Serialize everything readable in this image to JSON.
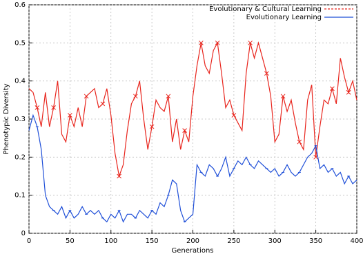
{
  "chart_data": {
    "type": "line",
    "x_label": "Generations",
    "y_label": "Phenotypic Diversity",
    "x": [
      0,
      5,
      10,
      15,
      20,
      25,
      30,
      35,
      40,
      45,
      50,
      55,
      60,
      65,
      70,
      75,
      80,
      85,
      90,
      95,
      100,
      105,
      110,
      115,
      120,
      125,
      130,
      135,
      140,
      145,
      150,
      155,
      160,
      165,
      170,
      175,
      180,
      185,
      190,
      195,
      200,
      205,
      210,
      215,
      220,
      225,
      230,
      235,
      240,
      245,
      250,
      255,
      260,
      265,
      270,
      275,
      280,
      285,
      290,
      295,
      300,
      305,
      310,
      315,
      320,
      325,
      330,
      335,
      340,
      345,
      350,
      355,
      360,
      365,
      370,
      375,
      380,
      385,
      390,
      395,
      400
    ],
    "series": [
      {
        "name": "Evolutionary & Cultural Learning",
        "color": "#e8241c",
        "marker": "x",
        "values": [
          0.38,
          0.37,
          0.33,
          0.28,
          0.37,
          0.28,
          0.33,
          0.4,
          0.26,
          0.24,
          0.31,
          0.28,
          0.33,
          0.28,
          0.36,
          0.37,
          0.38,
          0.33,
          0.34,
          0.38,
          0.31,
          0.21,
          0.15,
          0.18,
          0.27,
          0.34,
          0.36,
          0.4,
          0.3,
          0.22,
          0.28,
          0.35,
          0.33,
          0.32,
          0.36,
          0.24,
          0.3,
          0.22,
          0.27,
          0.24,
          0.36,
          0.44,
          0.5,
          0.44,
          0.42,
          0.48,
          0.5,
          0.42,
          0.33,
          0.35,
          0.31,
          0.29,
          0.27,
          0.42,
          0.5,
          0.46,
          0.5,
          0.46,
          0.42,
          0.36,
          0.24,
          0.26,
          0.36,
          0.32,
          0.35,
          0.29,
          0.24,
          0.22,
          0.35,
          0.39,
          0.2,
          0.28,
          0.35,
          0.34,
          0.38,
          0.34,
          0.46,
          0.41,
          0.37,
          0.4,
          0.35
        ]
      },
      {
        "name": "Evolutionary Learning",
        "color": "#1f4fd8",
        "marker": "tick",
        "values": [
          0.27,
          0.31,
          0.28,
          0.22,
          0.1,
          0.07,
          0.06,
          0.05,
          0.07,
          0.04,
          0.06,
          0.04,
          0.05,
          0.07,
          0.05,
          0.06,
          0.05,
          0.06,
          0.04,
          0.03,
          0.05,
          0.04,
          0.06,
          0.03,
          0.05,
          0.05,
          0.04,
          0.06,
          0.05,
          0.04,
          0.06,
          0.05,
          0.08,
          0.07,
          0.1,
          0.14,
          0.13,
          0.06,
          0.03,
          0.04,
          0.05,
          0.18,
          0.16,
          0.15,
          0.18,
          0.17,
          0.15,
          0.17,
          0.2,
          0.15,
          0.17,
          0.19,
          0.18,
          0.2,
          0.18,
          0.17,
          0.19,
          0.18,
          0.17,
          0.16,
          0.17,
          0.15,
          0.16,
          0.18,
          0.16,
          0.15,
          0.16,
          0.18,
          0.2,
          0.21,
          0.23,
          0.17,
          0.18,
          0.16,
          0.17,
          0.15,
          0.16,
          0.13,
          0.15,
          0.13,
          0.14
        ]
      }
    ],
    "xlim": [
      0,
      400
    ],
    "xticks": [
      0,
      50,
      100,
      150,
      200,
      250,
      300,
      350,
      400
    ],
    "ylim": [
      0,
      0.6
    ],
    "yticks": [
      0,
      0.1,
      0.2,
      0.3,
      0.4,
      0.5,
      0.6
    ],
    "grid": true,
    "legend": "top-right"
  }
}
